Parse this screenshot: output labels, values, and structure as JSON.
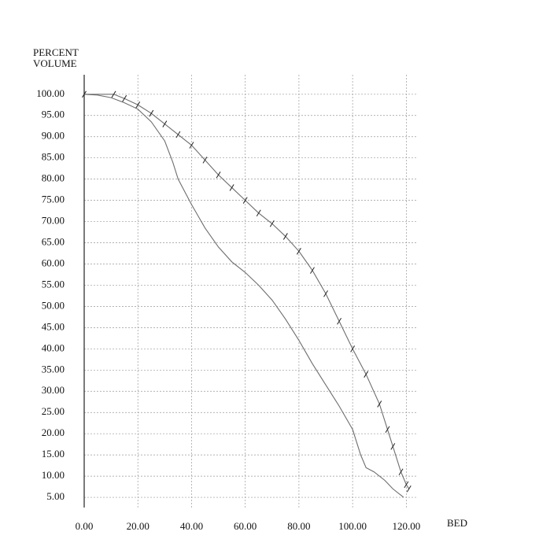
{
  "chart_data": {
    "type": "line",
    "ylabel_lines": [
      "PERCENT",
      "VOLUME"
    ],
    "xlabel": "BED",
    "series": [
      {
        "color": "#6e6e6e",
        "markers": false,
        "x": [
          0,
          5,
          10,
          15,
          20,
          25,
          30,
          33,
          35,
          40,
          45,
          50,
          55,
          60,
          65,
          70,
          75,
          80,
          85,
          90,
          95,
          100,
          103,
          105,
          108,
          112,
          115,
          118,
          119
        ],
        "values": [
          100,
          99.8,
          99.2,
          98,
          96.5,
          93.5,
          89,
          84,
          80,
          74,
          68.5,
          64,
          60.5,
          58,
          55,
          51.5,
          47,
          42,
          36.5,
          31.5,
          26.5,
          21,
          15,
          12,
          11,
          9,
          7,
          5.5,
          5
        ]
      },
      {
        "color": "#6e6e6e",
        "markers": true,
        "marker_color": "#222222",
        "x": [
          0,
          11,
          15,
          20,
          25,
          30,
          35,
          40,
          45,
          50,
          55,
          60,
          65,
          70,
          75,
          80,
          85,
          90,
          95,
          100,
          105,
          110,
          113,
          115,
          118,
          120,
          121
        ],
        "values": [
          100,
          100,
          99,
          97.5,
          95.5,
          93,
          90.5,
          88,
          84.5,
          81,
          78,
          75,
          72,
          69.5,
          66.5,
          63,
          58.5,
          53,
          46.5,
          40,
          34,
          27,
          21,
          17,
          11,
          8,
          7
        ]
      }
    ],
    "xlim": [
      0,
      124
    ],
    "ylim": [
      2.6,
      104.6
    ],
    "xticks": [
      {
        "value": 0,
        "label": "0.00"
      },
      {
        "value": 20,
        "label": "20.00"
      },
      {
        "value": 40,
        "label": "40.00"
      },
      {
        "value": 60,
        "label": "60.00"
      },
      {
        "value": 80,
        "label": "80.00"
      },
      {
        "value": 100,
        "label": "100.00"
      },
      {
        "value": 120,
        "label": "120.00"
      }
    ],
    "yticks": [
      {
        "value": 5,
        "label": "5.00"
      },
      {
        "value": 10,
        "label": "10.00"
      },
      {
        "value": 15,
        "label": "15.00"
      },
      {
        "value": 20,
        "label": "20.00"
      },
      {
        "value": 25,
        "label": "25.00"
      },
      {
        "value": 30,
        "label": "30.00"
      },
      {
        "value": 35,
        "label": "35.00"
      },
      {
        "value": 40,
        "label": "40.00"
      },
      {
        "value": 45,
        "label": "45.00"
      },
      {
        "value": 50,
        "label": "50.00"
      },
      {
        "value": 55,
        "label": "55.00"
      },
      {
        "value": 60,
        "label": "60.00"
      },
      {
        "value": 65,
        "label": "65.00"
      },
      {
        "value": 70,
        "label": "70.00"
      },
      {
        "value": 75,
        "label": "75.00"
      },
      {
        "value": 80,
        "label": "80.00"
      },
      {
        "value": 85,
        "label": "85.00"
      },
      {
        "value": 90,
        "label": "90.00"
      },
      {
        "value": 95,
        "label": "95.00"
      },
      {
        "value": 100,
        "label": "100.00"
      }
    ],
    "grid": true
  }
}
